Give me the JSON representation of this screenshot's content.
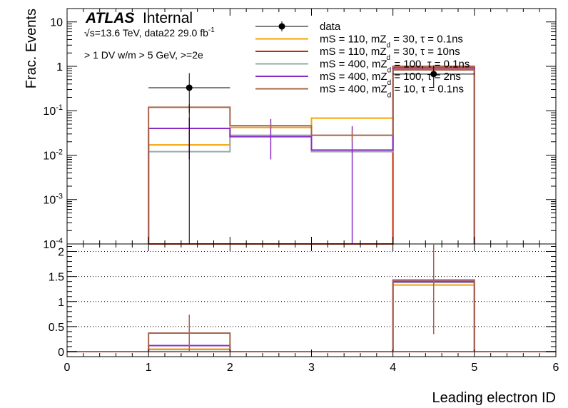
{
  "figure": {
    "experiment": "ATLAS",
    "status": "Internal",
    "energy_sqrt": "√",
    "energy_text": "s=13.6 TeV, data22 29.0 fb",
    "energy_sup": "-1",
    "selection": "> 1 DV w/m > 5 GeV, >=2e"
  },
  "chart_data": [
    {
      "panel": "main",
      "type": "histogram",
      "xlabel": "Leading electron ID",
      "ylabel": "Frac. Events",
      "yscale": "log",
      "xlim": [
        0,
        6
      ],
      "ylim": [
        0.0001,
        20
      ],
      "x_ticks": [
        "0",
        "1",
        "2",
        "3",
        "4",
        "5",
        "6"
      ],
      "y_ticks": [
        {
          "value": 10,
          "base": "10",
          "exp": ""
        },
        {
          "value": 1,
          "base": "1",
          "exp": ""
        },
        {
          "value": 0.1,
          "base": "10",
          "exp": "-1"
        },
        {
          "value": 0.01,
          "base": "10",
          "exp": "-2"
        },
        {
          "value": 0.001,
          "base": "10",
          "exp": "-3"
        },
        {
          "value": 0.0001,
          "base": "10",
          "exp": "-4"
        }
      ],
      "bin_edges": [
        1,
        2,
        3,
        4,
        5
      ],
      "series": [
        {
          "name": "data",
          "label": "data",
          "kind": "points",
          "color": "#000000",
          "points": [
            {
              "x": 1.5,
              "y": 0.33,
              "ylow": 0.0001,
              "yhigh": 0.7
            },
            {
              "x": 4.5,
              "y": 0.67,
              "ylow": 0.33,
              "yhigh": 1.05
            }
          ]
        },
        {
          "name": "s110_30_0p1",
          "label": "mS = 110, mZ_d = 30, τ = 0.1ns",
          "label_main": "mS = 110, mZ",
          "label_sub": "d",
          "label_rest": " = 30, τ = 0.1ns",
          "kind": "hist",
          "color": "#f5a300",
          "values": [
            0.017,
            0.042,
            0.068,
            0.87
          ],
          "errors": []
        },
        {
          "name": "s110_30_10",
          "label": "mS = 110, mZ_d = 30, τ = 10ns",
          "label_main": "mS = 110, mZ",
          "label_sub": "d",
          "label_rest": " = 30, τ = 10ns",
          "kind": "hist",
          "color": "#c82a00",
          "values": [
            0,
            0,
            0,
            1.0
          ],
          "errors": []
        },
        {
          "name": "s400_100_0p1",
          "label": "mS = 400, mZ_d = 100, τ = 0.1ns",
          "label_main": "mS = 400, mZ",
          "label_sub": "d",
          "label_rest": " = 100, τ = 0.1ns",
          "kind": "hist",
          "color": "#9aa8a8",
          "values": [
            0.012,
            0.028,
            0.012,
            0.95
          ],
          "errors": []
        },
        {
          "name": "s400_100_2",
          "label": "mS = 400, mZ_d = 100, τ = 2ns",
          "label_main": "mS = 400, mZ",
          "label_sub": "d",
          "label_rest": " = 100, τ = 2ns",
          "kind": "hist",
          "color": "#8a2cc4",
          "values": [
            0.04,
            0.026,
            0.013,
            0.92
          ],
          "errors": [
            {
              "x": 1.5,
              "low": 0.008,
              "high": 0.07
            },
            {
              "x": 2.5,
              "low": 0.008,
              "high": 0.065
            },
            {
              "x": 3.5,
              "low": 0.0001,
              "high": 0.045
            }
          ]
        },
        {
          "name": "s400_10_0p1",
          "label": "mS = 400, mZ_d = 10, τ = 0.1ns",
          "label_main": "mS = 400, mZ",
          "label_sub": "d",
          "label_rest": " = 10, τ = 0.1ns",
          "kind": "hist",
          "color": "#a8644c",
          "values": [
            0.12,
            0.046,
            0.028,
            0.83
          ],
          "errors": [
            {
              "x": 1.5,
              "low": 0.09,
              "high": 0.14
            },
            {
              "x": 2.5,
              "low": 0.04,
              "high": 0.052
            },
            {
              "x": 3.5,
              "low": 0.02,
              "high": 0.036
            }
          ]
        }
      ]
    },
    {
      "panel": "ratio",
      "type": "histogram",
      "xlabel": "Leading electron ID",
      "ylabel": "",
      "xlim": [
        0,
        6
      ],
      "ylim": [
        -0.1,
        2.15
      ],
      "x_ticks": [
        "0",
        "1",
        "2",
        "3",
        "4",
        "5",
        "6"
      ],
      "y_ticks": [
        "0",
        "0.5",
        "1",
        "1.5",
        "2"
      ],
      "y_tick_values": [
        0,
        0.5,
        1,
        1.5,
        2
      ],
      "grid": "horizontal dotted",
      "bin_edges": [
        1,
        2,
        3,
        4,
        5
      ],
      "series": [
        {
          "name": "s110_30_0p1",
          "color": "#f5a300",
          "values": [
            0.05,
            0,
            0,
            1.33
          ]
        },
        {
          "name": "s110_30_10",
          "color": "#c82a00",
          "values": [
            0.0,
            0,
            0,
            0.0
          ]
        },
        {
          "name": "s400_100_0p1",
          "color": "#9aa8a8",
          "values": [
            0.04,
            0,
            0,
            1.38
          ]
        },
        {
          "name": "s400_100_2",
          "color": "#8a2cc4",
          "values": [
            0.12,
            0,
            0,
            1.4
          ]
        },
        {
          "name": "s400_10_0p1",
          "color": "#a8644c",
          "values": [
            0.37,
            0,
            0,
            1.43
          ],
          "errors": [
            {
              "x": 1.5,
              "low": 0.0,
              "high": 0.74
            },
            {
              "x": 4.5,
              "low": 0.35,
              "high": 2.15
            }
          ]
        }
      ]
    }
  ]
}
